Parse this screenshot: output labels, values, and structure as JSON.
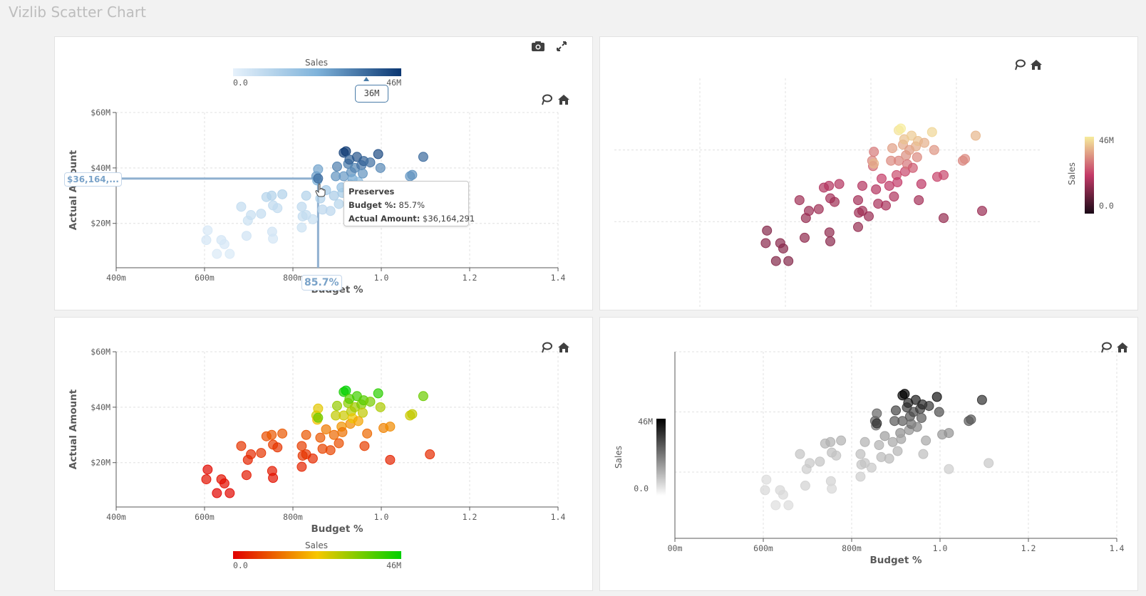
{
  "app": {
    "title": "Vizlib Scatter Chart"
  },
  "icons": {
    "snapshot": "camera-icon",
    "expand": "expand-icon",
    "lasso": "lasso-icon",
    "home": "home-icon"
  },
  "colors": {
    "blue_low": "#e6f1fb",
    "blue_high": "#0b3772",
    "magma_low": "#1a0a17",
    "magma_mid": "#c43a68",
    "magma_high": "#f6ec9c",
    "rg_low": "#e00000",
    "rg_mid": "#f7c700",
    "rg_high": "#00d000",
    "gray_low": "#ffffff",
    "gray_high": "#000000"
  },
  "tooltip": {
    "title": "Preserves",
    "budget_label": "Budget %:",
    "budget_value": "85.7%",
    "actual_label": "Actual Amount:",
    "actual_value": "$36,164,291"
  },
  "hover": {
    "y_label": "$36,164,...",
    "x_label": "85.7%",
    "legend_marker": "36M",
    "hovered_point": [
      0.857,
      36.16
    ]
  },
  "chart_data": [
    {
      "type": "scatter",
      "title": "",
      "xlabel": "Budget %",
      "ylabel": "Actual Amount",
      "x_ticks": [
        "400m",
        "600m",
        "800m",
        "1.0",
        "1.2",
        "1.4"
      ],
      "y_ticks": [
        "$20M",
        "$40M",
        "$60M"
      ],
      "xlim": [
        0.4,
        1.4
      ],
      "ylim": [
        4,
        60
      ],
      "legend": {
        "title": "Sales",
        "min_label": "0.0",
        "max_label": "46M",
        "position": "top",
        "palette": "blues"
      },
      "grid": true,
      "points_ref": "shared_points"
    },
    {
      "type": "scatter",
      "title": "",
      "xlabel": "",
      "ylabel": "",
      "x_ticks": [],
      "y_ticks": [],
      "legend": {
        "title": "Sales",
        "min_label": "0.0",
        "max_label": "46M",
        "position": "right",
        "palette": "magma"
      },
      "grid": true,
      "points_ref": "shared_points"
    },
    {
      "type": "scatter",
      "title": "",
      "xlabel": "Budget %",
      "ylabel": "Actual Amount",
      "x_ticks": [
        "400m",
        "600m",
        "800m",
        "1.0",
        "1.2",
        "1.4"
      ],
      "y_ticks": [
        "$20M",
        "$40M",
        "$60M"
      ],
      "xlim": [
        0.4,
        1.4
      ],
      "ylim": [
        4,
        60
      ],
      "legend": {
        "title": "Sales",
        "min_label": "0.0",
        "max_label": "46M",
        "position": "bottom",
        "palette": "red-yellow-green"
      },
      "grid": true,
      "points_ref": "shared_points"
    },
    {
      "type": "scatter",
      "title": "",
      "xlabel": "Budget %",
      "ylabel": "",
      "x_ticks": [
        "00m",
        "600m",
        "800m",
        "1.0",
        "1.2",
        "1.4"
      ],
      "y_ticks": [],
      "legend": {
        "title": "Sales",
        "min_label": "0.0",
        "max_label": "46M",
        "position": "left",
        "palette": "grays"
      },
      "grid": true,
      "points_ref": "shared_points"
    }
  ],
  "shared_points": [
    [
      0.607,
      17.5
    ],
    [
      0.604,
      14
    ],
    [
      0.628,
      9
    ],
    [
      0.638,
      14
    ],
    [
      0.645,
      12.5
    ],
    [
      0.657,
      9
    ],
    [
      0.683,
      26
    ],
    [
      0.695,
      15.5
    ],
    [
      0.698,
      21
    ],
    [
      0.705,
      23
    ],
    [
      0.728,
      23.5
    ],
    [
      0.74,
      29.5
    ],
    [
      0.752,
      30
    ],
    [
      0.753,
      17
    ],
    [
      0.755,
      14.5
    ],
    [
      0.755,
      26.5
    ],
    [
      0.765,
      25.5
    ],
    [
      0.776,
      30.5
    ],
    [
      0.82,
      26
    ],
    [
      0.82,
      18.5
    ],
    [
      0.822,
      22.5
    ],
    [
      0.83,
      23
    ],
    [
      0.83,
      30
    ],
    [
      0.845,
      21.5
    ],
    [
      0.853,
      37
    ],
    [
      0.855,
      35.5
    ],
    [
      0.857,
      39.5
    ],
    [
      0.857,
      36.2
    ],
    [
      0.862,
      29
    ],
    [
      0.867,
      25
    ],
    [
      0.875,
      32
    ],
    [
      0.885,
      24.5
    ],
    [
      0.893,
      30
    ],
    [
      0.897,
      37
    ],
    [
      0.9,
      40.5
    ],
    [
      0.904,
      27
    ],
    [
      0.91,
      33
    ],
    [
      0.912,
      31
    ],
    [
      0.915,
      37
    ],
    [
      0.915,
      45.5
    ],
    [
      0.92,
      46
    ],
    [
      0.925,
      41.5
    ],
    [
      0.928,
      43
    ],
    [
      0.93,
      34
    ],
    [
      0.932,
      38.5
    ],
    [
      0.935,
      36
    ],
    [
      0.94,
      40
    ],
    [
      0.945,
      44
    ],
    [
      0.948,
      35
    ],
    [
      0.955,
      41
    ],
    [
      0.958,
      38
    ],
    [
      0.96,
      42.5
    ],
    [
      0.962,
      26
    ],
    [
      0.968,
      30.5
    ],
    [
      0.975,
      42
    ],
    [
      0.993,
      45
    ],
    [
      0.998,
      40
    ],
    [
      1.005,
      32.5
    ],
    [
      1.02,
      21
    ],
    [
      1.02,
      33
    ],
    [
      1.065,
      37
    ],
    [
      1.07,
      37.5
    ],
    [
      1.095,
      44
    ],
    [
      1.11,
      23
    ]
  ],
  "point_sales_M": [
    1,
    2,
    0.5,
    2,
    1.5,
    0.8,
    6,
    3,
    4,
    5,
    6,
    9,
    10,
    3,
    2,
    7,
    6,
    10,
    7,
    4,
    6,
    6,
    10,
    5,
    27,
    22,
    25,
    36,
    10,
    8,
    14,
    8,
    12,
    28,
    32,
    9,
    17,
    13,
    27,
    44,
    46,
    33,
    38,
    16,
    29,
    24,
    31,
    40,
    19,
    34,
    28,
    38,
    7,
    12,
    35,
    42,
    30,
    15,
    4,
    16,
    27,
    28,
    36,
    5
  ]
}
